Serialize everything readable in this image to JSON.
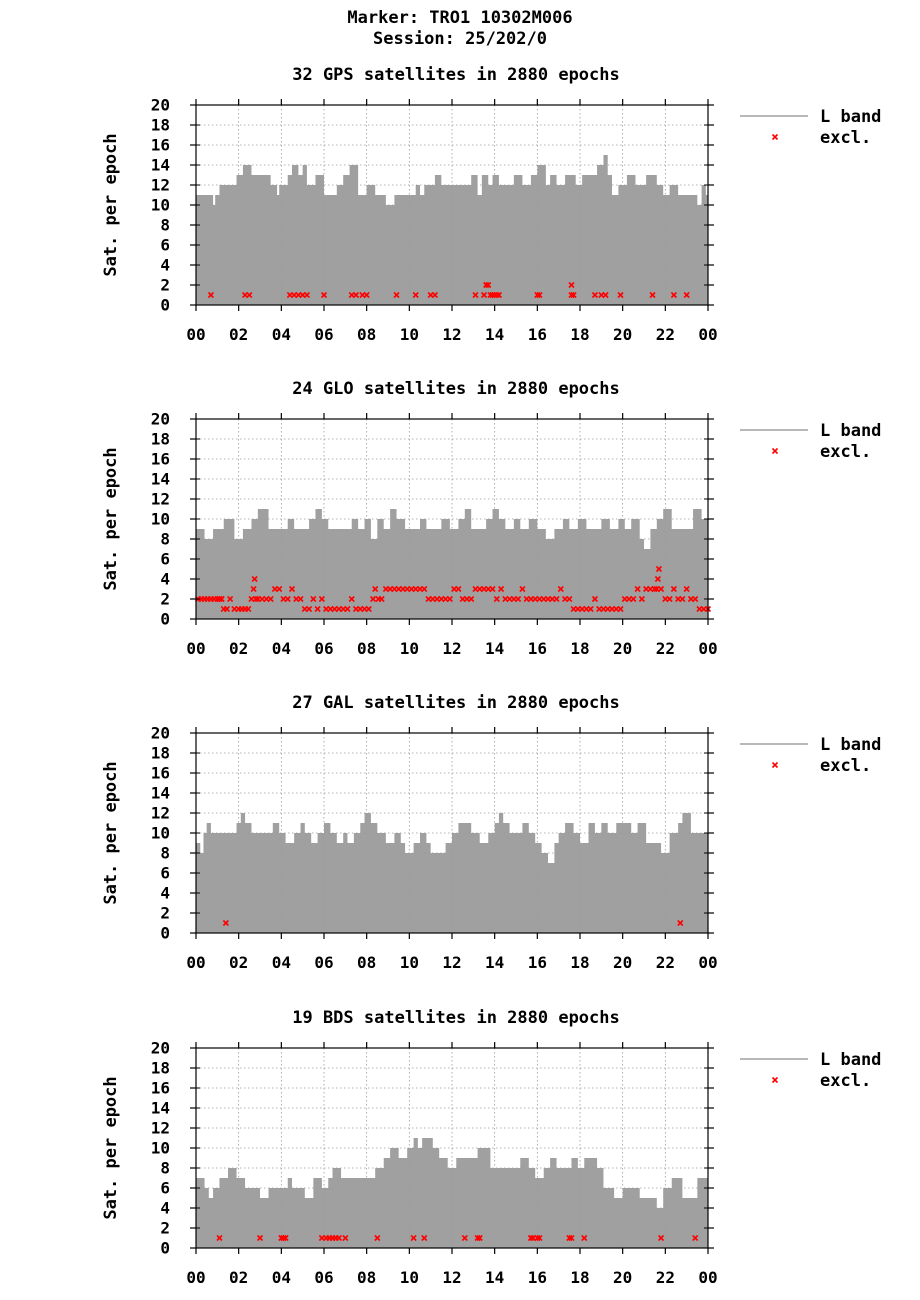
{
  "header": {
    "marker": "Marker: TRO1 10302M006",
    "session": "Session: 25/202/0"
  },
  "colors": {
    "band": "#a0a0a0",
    "excl": "#ff0000",
    "grid": "#9a9a9a"
  },
  "chart_data": [
    {
      "type": "area",
      "title": "32 GPS satellites in 2880 epochs",
      "ylabel": "Sat. per epoch",
      "ylim": [
        0,
        20
      ],
      "yticks": [
        "0",
        "2",
        "4",
        "6",
        "8",
        "10",
        "12",
        "14",
        "16",
        "18",
        "20"
      ],
      "xticks": [
        "00",
        "02",
        "04",
        "06",
        "08",
        "10",
        "12",
        "14",
        "16",
        "18",
        "20",
        "22",
        "00"
      ],
      "xlim_hours": [
        0,
        24
      ],
      "grid": true,
      "legend_position": "right",
      "legend": [
        "L band",
        "excl."
      ],
      "series": [
        {
          "name": "L band",
          "x": [
            0,
            0.8,
            0.9,
            1.1,
            1.4,
            1.9,
            2.2,
            2.6,
            2.9,
            3.5,
            3.8,
            3.9,
            4.1,
            4.3,
            4.5,
            4.8,
            5,
            5.2,
            5.6,
            6,
            6.3,
            6.6,
            6.9,
            7.2,
            7.6,
            8,
            8.4,
            8.7,
            8.9,
            9.3,
            9.6,
            9.9,
            10.3,
            10.5,
            10.7,
            11.2,
            11.5,
            11.8,
            12.2,
            12.6,
            12.9,
            13.2,
            13.4,
            13.7,
            13.9,
            14.2,
            14.5,
            14.9,
            15.3,
            15.7,
            16,
            16.4,
            16.6,
            16.9,
            17.3,
            17.6,
            17.8,
            18.1,
            18.5,
            18.8,
            19.1,
            19.3,
            19.5,
            19.8,
            20.2,
            20.6,
            21.1,
            21.6,
            21.9,
            22.2,
            22.6,
            23,
            23.3,
            23.5,
            23.7,
            23.9,
            24
          ],
          "values": [
            11,
            10,
            11,
            12,
            12,
            13,
            14,
            13,
            13,
            12,
            11,
            12,
            12,
            13,
            14,
            13,
            14,
            12,
            13,
            11,
            11,
            12,
            13,
            14,
            11,
            12,
            11,
            11,
            10,
            11,
            11,
            11,
            12,
            11,
            12,
            13,
            12,
            12,
            12,
            12,
            13,
            11,
            13,
            12,
            13,
            12,
            12,
            13,
            12,
            13,
            14,
            12,
            13,
            12,
            13,
            13,
            12,
            13,
            13,
            14,
            15,
            13,
            11,
            12,
            13,
            12,
            13,
            12,
            11,
            12,
            11,
            11,
            11,
            10,
            12,
            11,
            11
          ]
        },
        {
          "name": "excl.",
          "x": [
            0.7,
            2.3,
            2.5,
            4.4,
            4.6,
            4.8,
            5,
            5.2,
            6,
            7.3,
            7.5,
            7.8,
            8,
            9.4,
            10.3,
            11,
            11.2,
            13.1,
            13.5,
            13.6,
            13.7,
            13.8,
            13.9,
            14,
            14.1,
            14.2,
            16,
            16.1,
            17.6,
            17.7,
            17.6,
            18.7,
            19,
            19.2,
            19.9,
            21.4,
            22.4,
            23
          ],
          "values": [
            1,
            1,
            1,
            1,
            1,
            1,
            1,
            1,
            1,
            1,
            1,
            1,
            1,
            1,
            1,
            1,
            1,
            1,
            1,
            2,
            2,
            1,
            1,
            1,
            1,
            1,
            1,
            1,
            1,
            1,
            2,
            1,
            1,
            1,
            1,
            1,
            1,
            1
          ]
        }
      ]
    },
    {
      "type": "area",
      "title": "24 GLO satellites in 2880 epochs",
      "ylabel": "Sat. per epoch",
      "ylim": [
        0,
        20
      ],
      "yticks": [
        "0",
        "2",
        "4",
        "6",
        "8",
        "10",
        "12",
        "14",
        "16",
        "18",
        "20"
      ],
      "xticks": [
        "00",
        "02",
        "04",
        "06",
        "08",
        "10",
        "12",
        "14",
        "16",
        "18",
        "20",
        "22",
        "00"
      ],
      "xlim_hours": [
        0,
        24
      ],
      "grid": true,
      "legend_position": "right",
      "legend": [
        "L band",
        "excl."
      ],
      "series": [
        {
          "name": "L band",
          "x": [
            0,
            0.4,
            0.8,
            1.3,
            1.8,
            2.2,
            2.6,
            2.9,
            3.4,
            3.8,
            4.3,
            4.6,
            4.9,
            5.3,
            5.6,
            5.9,
            6.2,
            6.8,
            7.3,
            7.6,
            7.9,
            8.2,
            8.5,
            8.8,
            9.1,
            9.4,
            9.8,
            10.2,
            10.5,
            10.8,
            11.1,
            11.5,
            11.9,
            12.3,
            12.6,
            12.9,
            13.2,
            13.6,
            13.9,
            14.2,
            14.5,
            14.9,
            15.2,
            15.6,
            16,
            16.4,
            16.8,
            17.2,
            17.5,
            17.9,
            18.3,
            18.6,
            19,
            19.4,
            19.8,
            20.1,
            20.4,
            20.8,
            21,
            21.3,
            21.6,
            21.9,
            22.3,
            22.7,
            23,
            23.3,
            23.7,
            24
          ],
          "values": [
            9,
            8,
            9,
            10,
            8,
            9,
            10,
            11,
            9,
            9,
            10,
            9,
            9,
            10,
            11,
            10,
            9,
            9,
            10,
            9,
            10,
            8,
            10,
            9,
            11,
            10,
            9,
            9,
            10,
            9,
            9,
            10,
            9,
            10,
            11,
            9,
            9,
            10,
            11,
            10,
            9,
            10,
            9,
            10,
            9,
            8,
            9,
            10,
            9,
            10,
            9,
            9,
            10,
            9,
            10,
            9,
            10,
            8,
            7,
            9,
            10,
            11,
            9,
            9,
            9,
            11,
            10,
            10
          ]
        },
        {
          "name": "excl.",
          "x": [
            0.1,
            0.25,
            0.4,
            0.55,
            0.7,
            0.85,
            1,
            1.1,
            1.2,
            1.3,
            1.45,
            1.2,
            1.6,
            1.8,
            2,
            2.15,
            2.3,
            2.45,
            2.6,
            2.7,
            2.75,
            2.8,
            2.9,
            3.1,
            3.3,
            3.5,
            3.7,
            3.9,
            4.1,
            4.3,
            4.5,
            4.7,
            4.9,
            5.1,
            5.3,
            5.5,
            5.7,
            5.9,
            6.1,
            6.3,
            6.5,
            6.7,
            6.9,
            7.1,
            7.3,
            7.5,
            7.7,
            7.9,
            8.1,
            8.3,
            8.4,
            8.55,
            8.7,
            8.9,
            9.1,
            9.3,
            9.5,
            9.7,
            9.9,
            10.1,
            10.3,
            10.5,
            10.7,
            10.9,
            11.1,
            11.3,
            11.5,
            11.7,
            11.9,
            12.1,
            12.3,
            12.5,
            12.7,
            12.9,
            13.1,
            13.3,
            13.5,
            13.7,
            13.9,
            14.1,
            14.3,
            14.5,
            14.7,
            14.9,
            15.1,
            15.3,
            15.5,
            15.7,
            15.9,
            16.1,
            16.3,
            16.5,
            16.7,
            16.9,
            17.1,
            17.3,
            17.5,
            17.7,
            17.9,
            18.1,
            18.3,
            18.5,
            18.7,
            18.9,
            19.1,
            19.3,
            19.5,
            19.7,
            19.9,
            20.1,
            20.3,
            20.5,
            20.7,
            20.9,
            21.1,
            21.3,
            21.5,
            21.6,
            21.65,
            21.7,
            21.8,
            22,
            22.2,
            22.4,
            22.6,
            22.8,
            23,
            23.2,
            23.4,
            23.6,
            23.8,
            24
          ],
          "values": [
            2,
            2,
            2,
            2,
            2,
            2,
            2,
            2,
            2,
            1,
            1,
            2,
            2,
            1,
            1,
            1,
            1,
            1,
            2,
            3,
            4,
            2,
            2,
            2,
            2,
            2,
            3,
            3,
            2,
            2,
            3,
            2,
            2,
            1,
            1,
            2,
            1,
            2,
            1,
            1,
            1,
            1,
            1,
            1,
            2,
            1,
            1,
            1,
            1,
            2,
            3,
            2,
            2,
            3,
            3,
            3,
            3,
            3,
            3,
            3,
            3,
            3,
            3,
            2,
            2,
            2,
            2,
            2,
            2,
            3,
            3,
            2,
            2,
            2,
            3,
            3,
            3,
            3,
            3,
            2,
            3,
            2,
            2,
            2,
            2,
            3,
            2,
            2,
            2,
            2,
            2,
            2,
            2,
            2,
            3,
            2,
            2,
            1,
            1,
            1,
            1,
            1,
            2,
            1,
            1,
            1,
            1,
            1,
            1,
            2,
            2,
            2,
            3,
            2,
            3,
            3,
            3,
            3,
            4,
            5,
            3,
            2,
            2,
            3,
            2,
            2,
            3,
            2,
            2,
            1,
            1,
            1
          ]
        }
      ]
    },
    {
      "type": "area",
      "title": "27 GAL satellites in 2880 epochs",
      "ylabel": "Sat. per epoch",
      "ylim": [
        0,
        20
      ],
      "yticks": [
        "0",
        "2",
        "4",
        "6",
        "8",
        "10",
        "12",
        "14",
        "16",
        "18",
        "20"
      ],
      "xticks": [
        "00",
        "02",
        "04",
        "06",
        "08",
        "10",
        "12",
        "14",
        "16",
        "18",
        "20",
        "22",
        "00"
      ],
      "xlim_hours": [
        0,
        24
      ],
      "grid": true,
      "legend_position": "right",
      "legend": [
        "L band",
        "excl."
      ],
      "series": [
        {
          "name": "L band",
          "x": [
            0,
            0.2,
            0.35,
            0.5,
            0.7,
            1.9,
            2.1,
            2.3,
            2.6,
            3.4,
            3.6,
            3.9,
            4.2,
            4.6,
            4.9,
            5.1,
            5.4,
            5.7,
            6,
            6.3,
            6.6,
            6.9,
            7.1,
            7.4,
            7.7,
            7.9,
            8.2,
            8.5,
            8.9,
            9.3,
            9.6,
            9.8,
            10.2,
            10.5,
            10.8,
            11,
            11.4,
            11.7,
            12,
            12.3,
            12.6,
            12.9,
            13.3,
            13.7,
            14,
            14.2,
            14.4,
            14.7,
            15,
            15.3,
            15.6,
            15.9,
            16.2,
            16.5,
            16.8,
            17,
            17.3,
            17.7,
            18,
            18.4,
            18.7,
            19,
            19.3,
            19.7,
            20.1,
            20.4,
            20.7,
            21.1,
            21.4,
            21.8,
            22.2,
            22.6,
            22.8,
            23.2,
            24
          ],
          "values": [
            9,
            8,
            10,
            11,
            10,
            11,
            12,
            11,
            10,
            10,
            11,
            10,
            9,
            10,
            11,
            10,
            9,
            10,
            11,
            10,
            9,
            10,
            9,
            10,
            11,
            12,
            11,
            10,
            9,
            10,
            9,
            8,
            9,
            10,
            9,
            8,
            8,
            9,
            10,
            11,
            11,
            10,
            9,
            10,
            11,
            12,
            11,
            10,
            10,
            11,
            10,
            9,
            8,
            7,
            9,
            10,
            11,
            10,
            9,
            11,
            10,
            11,
            10,
            11,
            11,
            10,
            11,
            9,
            9,
            8,
            10,
            11,
            12,
            10,
            10
          ]
        },
        {
          "name": "excl.",
          "x": [
            1.4,
            22.7
          ],
          "values": [
            1,
            1
          ]
        }
      ]
    },
    {
      "type": "area",
      "title": "19 BDS satellites in 2880 epochs",
      "ylabel": "Sat. per epoch",
      "ylim": [
        0,
        20
      ],
      "yticks": [
        "0",
        "2",
        "4",
        "6",
        "8",
        "10",
        "12",
        "14",
        "16",
        "18",
        "20"
      ],
      "xticks": [
        "00",
        "02",
        "04",
        "06",
        "08",
        "10",
        "12",
        "14",
        "16",
        "18",
        "20",
        "22",
        "00"
      ],
      "xlim_hours": [
        0,
        24
      ],
      "grid": true,
      "legend_position": "right",
      "legend": [
        "L band",
        "excl."
      ],
      "series": [
        {
          "name": "L band",
          "x": [
            0,
            0.4,
            0.6,
            0.8,
            1.1,
            1.5,
            1.9,
            2.3,
            2.7,
            3,
            3.4,
            4.1,
            4.3,
            4.5,
            5.1,
            5.5,
            5.9,
            6.2,
            6.4,
            6.8,
            7.2,
            7.6,
            8,
            8.4,
            8.8,
            9.1,
            9.5,
            9.9,
            10.2,
            10.4,
            10.6,
            11.1,
            11.4,
            11.8,
            12.2,
            12.6,
            13.2,
            13.8,
            14.4,
            14.7,
            15.2,
            15.6,
            15.9,
            16.3,
            16.6,
            16.9,
            17.3,
            17.6,
            17.9,
            18.2,
            18.5,
            18.8,
            19.1,
            19.6,
            20,
            20.4,
            20.8,
            21.2,
            21.6,
            21.9,
            22.3,
            22.8,
            23.1,
            23.5,
            24
          ],
          "values": [
            7,
            6,
            5,
            6,
            7,
            8,
            7,
            6,
            6,
            5,
            6,
            6,
            7,
            6,
            5,
            7,
            6,
            7,
            8,
            7,
            7,
            7,
            7,
            8,
            9,
            10,
            9,
            10,
            11,
            10,
            11,
            10,
            9,
            8,
            9,
            9,
            10,
            8,
            8,
            8,
            9,
            8,
            7,
            8,
            9,
            8,
            8,
            9,
            8,
            9,
            9,
            8,
            6,
            5,
            6,
            6,
            5,
            5,
            4,
            6,
            7,
            5,
            5,
            7,
            7
          ]
        },
        {
          "name": "excl.",
          "x": [
            1.1,
            3,
            4,
            4.1,
            4.2,
            5.9,
            6.1,
            6.25,
            6.4,
            6.55,
            6.7,
            7,
            8.5,
            10.2,
            10.7,
            12.6,
            13.2,
            13.3,
            15.7,
            15.8,
            16,
            16.1,
            17.5,
            17.6,
            18.2,
            21.8,
            23.4
          ],
          "values": [
            1,
            1,
            1,
            1,
            1,
            1,
            1,
            1,
            1,
            1,
            1,
            1,
            1,
            1,
            1,
            1,
            1,
            1,
            1,
            1,
            1,
            1,
            1,
            1,
            1,
            1,
            1
          ]
        }
      ]
    }
  ]
}
